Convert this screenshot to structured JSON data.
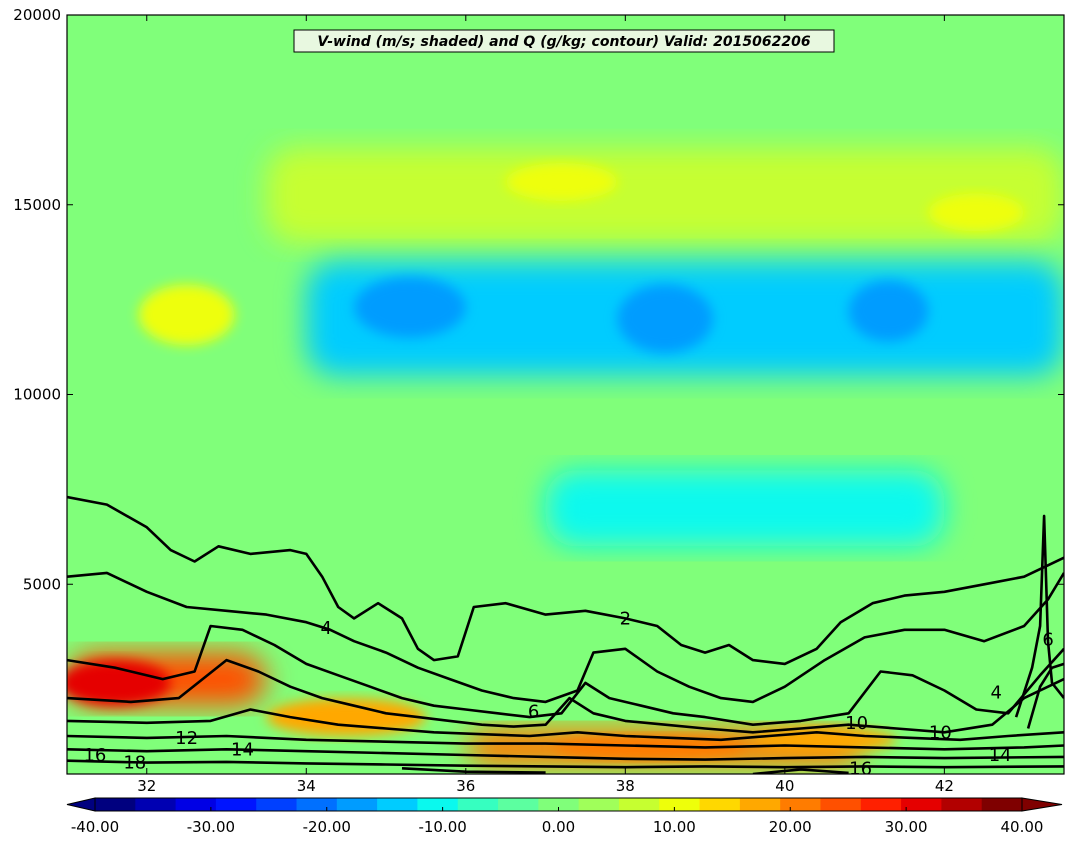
{
  "chart_data": {
    "type": "heatmap",
    "title": "V-wind (m/s; shaded) and Q (g/kg; contour) Valid: 2015062206",
    "xlabel": "",
    "ylabel": "",
    "xlim": [
      31,
      43.5
    ],
    "ylim": [
      0,
      20000
    ],
    "x_ticks": [
      32,
      34,
      36,
      38,
      40,
      42
    ],
    "y_ticks": [
      5000,
      10000,
      15000,
      20000
    ],
    "grid": false,
    "colorbar": {
      "orientation": "horizontal",
      "location": "bottom",
      "min": -40,
      "max": 40,
      "step": 4,
      "tick_values": [
        -40,
        -30,
        -20,
        -10,
        0,
        10,
        20,
        30,
        40
      ],
      "tick_labels": [
        "-40.00",
        "-30.00",
        "-20.00",
        "-10.00",
        "0.00",
        "10.00",
        "20.00",
        "30.00",
        "40.00"
      ],
      "colors": [
        "#00007f",
        "#0000b2",
        "#0000e5",
        "#0014ff",
        "#0040ff",
        "#0070ff",
        "#009cff",
        "#00ccff",
        "#0af9ee",
        "#36ffc0",
        "#5cffa0",
        "#80ff7a",
        "#a0ff5a",
        "#c6ff30",
        "#eeff0a",
        "#ffd800",
        "#ffa800",
        "#ff7c00",
        "#ff5000",
        "#ff2000",
        "#e50000",
        "#b20000",
        "#7f0000"
      ]
    },
    "wind_field": [
      {
        "label": "upper-level jet region",
        "x_range": [
          33.5,
          43.5
        ],
        "y_range": [
          14000,
          16500
        ],
        "value": 8
      },
      {
        "label": "upper negative region",
        "x_range": [
          34,
          43.5
        ],
        "y_range": [
          10500,
          13500
        ],
        "value": -14
      },
      {
        "label": "mid-level weak negative",
        "x_range": [
          37,
          42
        ],
        "y_range": [
          6000,
          8000
        ],
        "value": -10
      },
      {
        "label": "boundary-layer positive core",
        "x_range": [
          31,
          33.5
        ],
        "y_range": [
          1800,
          3200
        ],
        "value": 26
      },
      {
        "label": "low-level positive band",
        "x_range": [
          36,
          41
        ],
        "y_range": [
          200,
          1200
        ],
        "value": 20
      }
    ],
    "contour_levels": [
      2,
      4,
      6,
      8,
      10,
      12,
      14,
      16,
      18
    ],
    "contour_labels": [
      {
        "text": "2",
        "x": 38.0,
        "y": 4100
      },
      {
        "text": "4",
        "x": 34.25,
        "y": 3850
      },
      {
        "text": "6",
        "x": 36.85,
        "y": 1650
      },
      {
        "text": "6",
        "x": 43.3,
        "y": 3550
      },
      {
        "text": "4",
        "x": 42.65,
        "y": 2150
      },
      {
        "text": "10",
        "x": 40.9,
        "y": 1350
      },
      {
        "text": "10",
        "x": 41.95,
        "y": 1100
      },
      {
        "text": "12",
        "x": 32.5,
        "y": 950
      },
      {
        "text": "14",
        "x": 33.2,
        "y": 650
      },
      {
        "text": "14",
        "x": 42.7,
        "y": 500
      },
      {
        "text": "16",
        "x": 31.35,
        "y": 500
      },
      {
        "text": "16",
        "x": 40.95,
        "y": 150
      },
      {
        "text": "18",
        "x": 31.85,
        "y": 300
      }
    ]
  }
}
